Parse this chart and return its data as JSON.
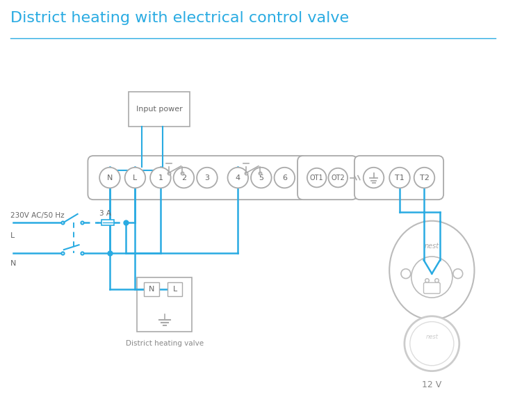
{
  "title": "District heating with electrical control valve",
  "title_color": "#29abe2",
  "title_fontsize": 16,
  "bg_color": "#ffffff",
  "line_color": "#29abe2",
  "comp_color": "#aaaaaa",
  "text_color": "#888888",
  "dark_text": "#666666",
  "input_power_label": "Input power",
  "valve_label": "District heating valve",
  "voltage_label": "12 V",
  "ac_label": "230V AC/50 Hz",
  "fuse_label": "3 A",
  "L_label": "L",
  "N_label": "N",
  "nest_label": "nest",
  "figw": 7.28,
  "figh": 5.94,
  "dpi": 100
}
